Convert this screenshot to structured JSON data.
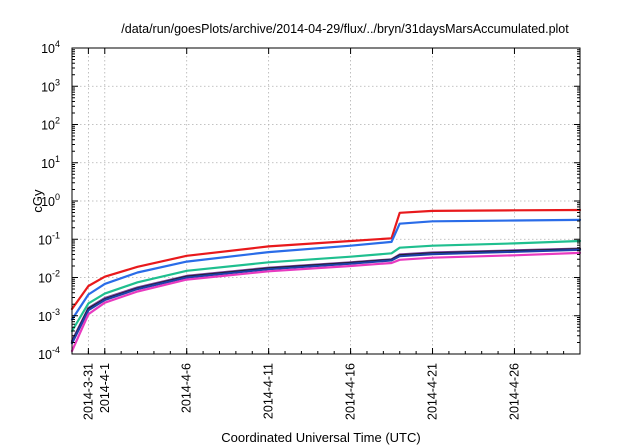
{
  "chart_data": {
    "type": "line",
    "title": "/data/run/goesPlots/archive/2014-04-29/flux/../bryn/31daysMarsAccumulated.plot",
    "xlabel": "Coordinated Universal Time (UTC)",
    "ylabel": "cGy",
    "xlim": [
      "2014-03-30",
      "2014-04-30"
    ],
    "ylim": [
      0.0001,
      10000
    ],
    "yscale": "log",
    "grid": true,
    "legend": "none",
    "x_ticks": [
      "2014-3-31",
      "2014-4-1",
      "2014-4-6",
      "2014-4-11",
      "2014-4-16",
      "2014-4-21",
      "2014-4-26"
    ],
    "y_ticks": [
      {
        "base": "10",
        "exp": "-4"
      },
      {
        "base": "10",
        "exp": "-3"
      },
      {
        "base": "10",
        "exp": "-2"
      },
      {
        "base": "10",
        "exp": "-1"
      },
      {
        "base": "10",
        "exp": "0"
      },
      {
        "base": "10",
        "exp": "1"
      },
      {
        "base": "10",
        "exp": "2"
      },
      {
        "base": "10",
        "exp": "3"
      },
      {
        "base": "10",
        "exp": "4"
      }
    ],
    "series": [
      {
        "color": "#e8191c",
        "x": [
          "2014-03-30",
          "2014-03-31",
          "2014-04-01",
          "2014-04-03",
          "2014-04-06",
          "2014-04-11",
          "2014-04-16",
          "2014-04-18.5",
          "2014-04-19",
          "2014-04-21",
          "2014-04-26",
          "2014-04-30"
        ],
        "y": [
          0.0015,
          0.006,
          0.0105,
          0.019,
          0.037,
          0.065,
          0.09,
          0.106,
          0.49,
          0.55,
          0.57,
          0.58
        ]
      },
      {
        "color": "#2a6ce8",
        "x": [
          "2014-03-30",
          "2014-03-31",
          "2014-04-01",
          "2014-04-03",
          "2014-04-06",
          "2014-04-11",
          "2014-04-16",
          "2014-04-18.5",
          "2014-04-19",
          "2014-04-21",
          "2014-04-26",
          "2014-04-30"
        ],
        "y": [
          0.0008,
          0.0036,
          0.0068,
          0.0135,
          0.026,
          0.046,
          0.068,
          0.085,
          0.255,
          0.295,
          0.31,
          0.32
        ]
      },
      {
        "color": "#1fbf8f",
        "x": [
          "2014-03-30",
          "2014-03-31",
          "2014-04-01",
          "2014-04-03",
          "2014-04-06",
          "2014-04-11",
          "2014-04-16",
          "2014-04-18.5",
          "2014-04-19",
          "2014-04-21",
          "2014-04-26",
          "2014-04-30"
        ],
        "y": [
          0.0004,
          0.0021,
          0.0038,
          0.0075,
          0.015,
          0.025,
          0.035,
          0.043,
          0.06,
          0.068,
          0.078,
          0.09
        ]
      },
      {
        "color": "#7b3fa0",
        "x": [
          "2014-03-30",
          "2014-03-31",
          "2014-04-01",
          "2014-04-03",
          "2014-04-06",
          "2014-04-11",
          "2014-04-16",
          "2014-04-18.5",
          "2014-04-19",
          "2014-04-21",
          "2014-04-26",
          "2014-04-30"
        ],
        "y": [
          0.00022,
          0.0016,
          0.0029,
          0.0055,
          0.011,
          0.018,
          0.025,
          0.03,
          0.04,
          0.045,
          0.051,
          0.057
        ]
      },
      {
        "color": "#1a1a1a",
        "x": [
          "2014-03-30",
          "2014-03-31",
          "2014-04-01",
          "2014-04-03",
          "2014-04-06",
          "2014-04-11",
          "2014-04-16",
          "2014-04-18.5",
          "2014-04-19",
          "2014-04-21",
          "2014-04-26",
          "2014-04-30"
        ],
        "y": [
          0.0002,
          0.0015,
          0.0027,
          0.0052,
          0.0105,
          0.0172,
          0.024,
          0.029,
          0.038,
          0.043,
          0.049,
          0.055
        ]
      },
      {
        "color": "#1f3fa8",
        "x": [
          "2014-03-30",
          "2014-03-31",
          "2014-04-01",
          "2014-04-03",
          "2014-04-06",
          "2014-04-11",
          "2014-04-16",
          "2014-04-18.5",
          "2014-04-19",
          "2014-04-21",
          "2014-04-26",
          "2014-04-30"
        ],
        "y": [
          0.00019,
          0.0014,
          0.0026,
          0.005,
          0.01,
          0.0165,
          0.023,
          0.028,
          0.036,
          0.041,
          0.047,
          0.053
        ]
      },
      {
        "color": "#e83ac0",
        "x": [
          "2014-03-30",
          "2014-03-31",
          "2014-04-01",
          "2014-04-03",
          "2014-04-06",
          "2014-04-11",
          "2014-04-16",
          "2014-04-18.5",
          "2014-04-19",
          "2014-04-21",
          "2014-04-26",
          "2014-04-30"
        ],
        "y": [
          0.00012,
          0.0011,
          0.0022,
          0.0043,
          0.0088,
          0.0145,
          0.02,
          0.024,
          0.029,
          0.033,
          0.038,
          0.044
        ]
      }
    ]
  }
}
